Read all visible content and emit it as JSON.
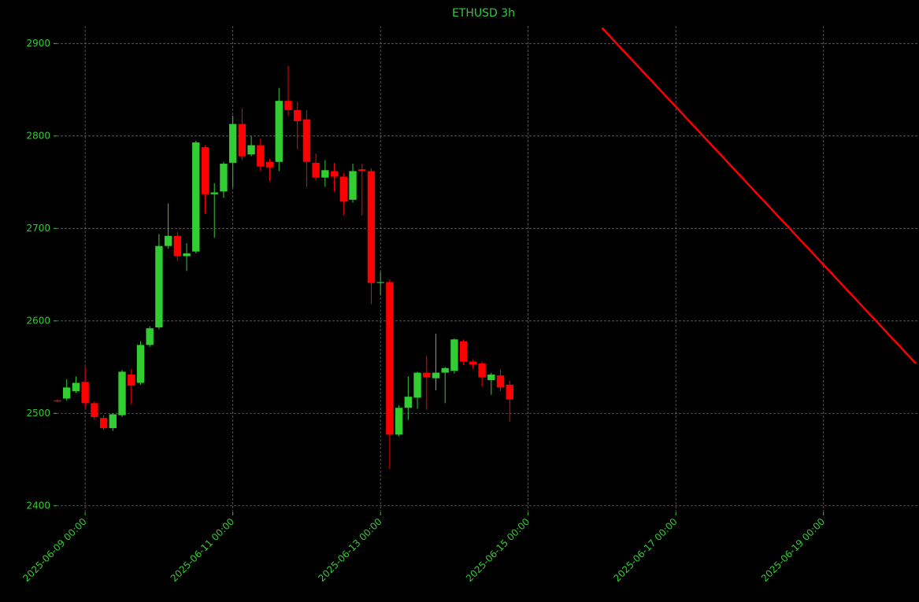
{
  "chart_data": {
    "type": "candlestick",
    "title": "ETHUSD 3h",
    "x": [
      "2025-06-08 15:00",
      "2025-06-08 18:00",
      "2025-06-08 21:00",
      "2025-06-09 00:00",
      "2025-06-09 03:00",
      "2025-06-09 06:00",
      "2025-06-09 09:00",
      "2025-06-09 12:00",
      "2025-06-09 15:00",
      "2025-06-09 18:00",
      "2025-06-09 21:00",
      "2025-06-10 00:00",
      "2025-06-10 03:00",
      "2025-06-10 06:00",
      "2025-06-10 09:00",
      "2025-06-10 12:00",
      "2025-06-10 15:00",
      "2025-06-10 18:00",
      "2025-06-10 21:00",
      "2025-06-11 00:00",
      "2025-06-11 03:00",
      "2025-06-11 06:00",
      "2025-06-11 09:00",
      "2025-06-11 12:00",
      "2025-06-11 15:00",
      "2025-06-11 18:00",
      "2025-06-11 21:00",
      "2025-06-12 00:00",
      "2025-06-12 03:00",
      "2025-06-12 06:00",
      "2025-06-12 09:00",
      "2025-06-12 12:00",
      "2025-06-12 15:00",
      "2025-06-12 18:00",
      "2025-06-12 21:00",
      "2025-06-13 00:00",
      "2025-06-13 03:00",
      "2025-06-13 06:00",
      "2025-06-13 09:00",
      "2025-06-13 12:00",
      "2025-06-13 15:00",
      "2025-06-13 18:00",
      "2025-06-13 21:00",
      "2025-06-14 00:00",
      "2025-06-14 03:00",
      "2025-06-14 06:00",
      "2025-06-14 09:00",
      "2025-06-14 12:00",
      "2025-06-14 15:00",
      "2025-06-14 18:00"
    ],
    "open": [
      2514,
      2516,
      2524,
      2534,
      2511,
      2495,
      2484,
      2498,
      2542,
      2533,
      2574,
      2593,
      2681,
      2692,
      2670,
      2675,
      2788,
      2737,
      2740,
      2771,
      2813,
      2780,
      2790,
      2772,
      2772,
      2838,
      2828,
      2818,
      2771,
      2755,
      2762,
      2756,
      2731,
      2764,
      2762,
      2641,
      2642,
      2477,
      2506,
      2517,
      2544,
      2538,
      2544,
      2546,
      2578,
      2556,
      2554,
      2536,
      2541,
      2531
    ],
    "high": [
      2515,
      2537,
      2540,
      2550,
      2513,
      2498,
      2500,
      2547,
      2548,
      2578,
      2594,
      2694,
      2727,
      2696,
      2684,
      2795,
      2790,
      2749,
      2772,
      2822,
      2830,
      2800,
      2797,
      2775,
      2852,
      2876,
      2837,
      2828,
      2781,
      2774,
      2771,
      2760,
      2770,
      2770,
      2765,
      2653,
      2645,
      2509,
      2540,
      2545,
      2562,
      2586,
      2550,
      2581,
      2580,
      2558,
      2556,
      2544,
      2548,
      2535
    ],
    "low": [
      2512,
      2514,
      2522,
      2505,
      2493,
      2482,
      2481,
      2496,
      2510,
      2531,
      2572,
      2591,
      2678,
      2665,
      2654,
      2673,
      2716,
      2690,
      2733,
      2744,
      2774,
      2778,
      2762,
      2751,
      2762,
      2822,
      2786,
      2745,
      2752,
      2745,
      2740,
      2714,
      2728,
      2714,
      2618,
      2628,
      2440,
      2475,
      2493,
      2505,
      2504,
      2525,
      2511,
      2543,
      2552,
      2548,
      2529,
      2520,
      2524,
      2491
    ],
    "close": [
      2513,
      2528,
      2533,
      2511,
      2496,
      2484,
      2499,
      2545,
      2530,
      2574,
      2592,
      2681,
      2692,
      2670,
      2673,
      2793,
      2737,
      2739,
      2770,
      2813,
      2778,
      2790,
      2767,
      2766,
      2838,
      2828,
      2816,
      2772,
      2755,
      2763,
      2756,
      2729,
      2762,
      2762,
      2641,
      2642,
      2477,
      2506,
      2518,
      2544,
      2539,
      2544,
      2549,
      2580,
      2556,
      2553,
      2539,
      2542,
      2528,
      2515
    ],
    "up_color": "#32cd32",
    "down_color": "#ff0000",
    "overlay": {
      "type": "line",
      "color": "#ff0000",
      "x": [
        "2025-06-16 00:00",
        "2025-06-20 06:00"
      ],
      "values": [
        2917,
        2554
      ]
    },
    "xlim": [
      "2025-06-08 14:45",
      "2025-06-20 05:15"
    ],
    "ylim": [
      2393,
      2919
    ],
    "xticks": [
      "2025-06-09 00:00",
      "2025-06-11 00:00",
      "2025-06-13 00:00",
      "2025-06-15 00:00",
      "2025-06-17 00:00",
      "2025-06-19 00:00"
    ],
    "yticks": [
      2400,
      2500,
      2600,
      2700,
      2800,
      2900
    ],
    "grid": true
  }
}
